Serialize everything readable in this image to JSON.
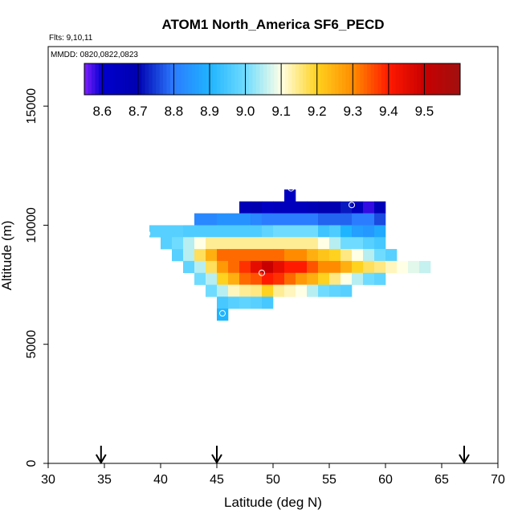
{
  "chart_data": {
    "type": "heatmap",
    "title": "ATOM1 North_America SF6_PECD",
    "flights_note": "Flts: 9,10,11",
    "dates_note": "MMDD: 0820,0822,0823",
    "xlabel": "Latitude (deg N)",
    "ylabel": "Altitude (m)",
    "xlim": [
      30,
      70
    ],
    "ylim": [
      0,
      17500
    ],
    "x_ticks": [
      30,
      35,
      40,
      45,
      50,
      55,
      60,
      65,
      70
    ],
    "y_ticks": [
      0,
      5000,
      10000,
      15000
    ],
    "grid": false,
    "legend": "colorbar at top, inside plot",
    "colorbar": {
      "min": 8.55,
      "max": 9.6,
      "ticks": [
        8.6,
        8.7,
        8.8,
        8.9,
        9.0,
        9.1,
        9.2,
        9.3,
        9.4,
        9.5
      ],
      "tick_labels": [
        "8.6",
        "8.7",
        "8.8",
        "8.9",
        "9.0",
        "9.1",
        "9.2",
        "9.3",
        "9.4",
        "9.5"
      ],
      "color_stops": [
        [
          8.55,
          "#7f1fff"
        ],
        [
          8.6,
          "#0000cd"
        ],
        [
          8.7,
          "#0000b0"
        ],
        [
          8.8,
          "#2b7cff"
        ],
        [
          8.9,
          "#1fb4ff"
        ],
        [
          9.0,
          "#6fdcff"
        ],
        [
          9.1,
          "#ffffe6"
        ],
        [
          9.2,
          "#ffd21f"
        ],
        [
          9.3,
          "#ff8c00"
        ],
        [
          9.4,
          "#ff1a00"
        ],
        [
          9.5,
          "#c80000"
        ],
        [
          9.6,
          "#a01010"
        ]
      ]
    },
    "cell_size": {
      "lat": 1.0,
      "alt": 500
    },
    "rows": [
      {
        "alt": 11250,
        "lat0": 51.0,
        "values": [
          8.64
        ]
      },
      {
        "alt": 10750,
        "lat0": 47.0,
        "values": [
          8.68,
          8.7,
          8.64,
          8.66,
          8.66,
          8.66,
          8.68,
          8.7,
          8.7,
          8.72,
          8.66,
          8.58,
          8.67
        ]
      },
      {
        "alt": 10250,
        "lat0": 43.0,
        "values": [
          8.82,
          8.82,
          8.84,
          8.84,
          8.84,
          8.82,
          8.8,
          8.8,
          8.8,
          8.8,
          8.8,
          8.78,
          8.78,
          8.78,
          8.8,
          8.8,
          8.76
        ]
      },
      {
        "alt": 9750,
        "lat0": 39.0,
        "values": [
          8.97,
          8.97,
          8.97,
          8.96,
          8.96,
          8.96,
          8.96,
          8.96,
          8.96,
          8.96,
          8.98,
          9.0,
          9.0,
          9.0,
          9.0,
          8.94,
          8.96,
          8.9,
          8.86,
          8.85,
          8.88
        ]
      },
      {
        "alt": 9250,
        "lat0": 40.0,
        "values": [
          8.97,
          9.0,
          9.05,
          9.1,
          9.14,
          9.14,
          9.14,
          9.14,
          9.14,
          9.14,
          9.14,
          9.14,
          9.14,
          9.14,
          9.1,
          9.05,
          9.0,
          9.0,
          8.97,
          8.95
        ]
      },
      {
        "alt": 8750,
        "lat0": 41.0,
        "values": [
          8.97,
          9.05,
          9.17,
          9.25,
          9.33,
          9.33,
          9.33,
          9.33,
          9.33,
          9.33,
          9.3,
          9.3,
          9.25,
          9.22,
          9.2,
          9.15,
          9.1,
          9.05,
          9.0,
          8.97
        ]
      },
      {
        "alt": 8250,
        "lat0": 42.0,
        "values": [
          8.98,
          9.05,
          9.17,
          9.28,
          9.33,
          9.38,
          9.45,
          9.5,
          9.45,
          9.4,
          9.4,
          9.35,
          9.3,
          9.3,
          9.25,
          9.2,
          9.17,
          9.15,
          9.12,
          9.1,
          9.08,
          9.06
        ]
      },
      {
        "alt": 7750,
        "lat0": 43.0,
        "values": [
          9.0,
          9.05,
          9.2,
          9.25,
          9.33,
          9.35,
          9.4,
          9.38,
          9.33,
          9.28,
          9.25,
          9.2,
          9.15,
          9.1,
          9.05,
          9.0,
          8.98
        ]
      },
      {
        "alt": 7250,
        "lat0": 44.0,
        "values": [
          9.0,
          9.05,
          9.12,
          9.14,
          9.15,
          9.2,
          9.14,
          9.12,
          9.1,
          9.05,
          9.0,
          8.98,
          8.97
        ]
      },
      {
        "alt": 6750,
        "lat0": 45.0,
        "values": [
          8.95,
          8.97,
          8.98,
          8.97,
          8.95
        ]
      },
      {
        "alt": 6250,
        "lat0": 45.0,
        "values": [
          8.9
        ]
      }
    ],
    "highlighted_points": [
      {
        "lat": 51.6,
        "alt": 11550
      },
      {
        "lat": 57.0,
        "alt": 10850
      },
      {
        "lat": 38.8,
        "alt": 9650
      },
      {
        "lat": 49.0,
        "alt": 8000
      },
      {
        "lat": 45.5,
        "alt": 6300
      }
    ],
    "arrow_latitudes": [
      34.7,
      45.0,
      67.0
    ]
  }
}
